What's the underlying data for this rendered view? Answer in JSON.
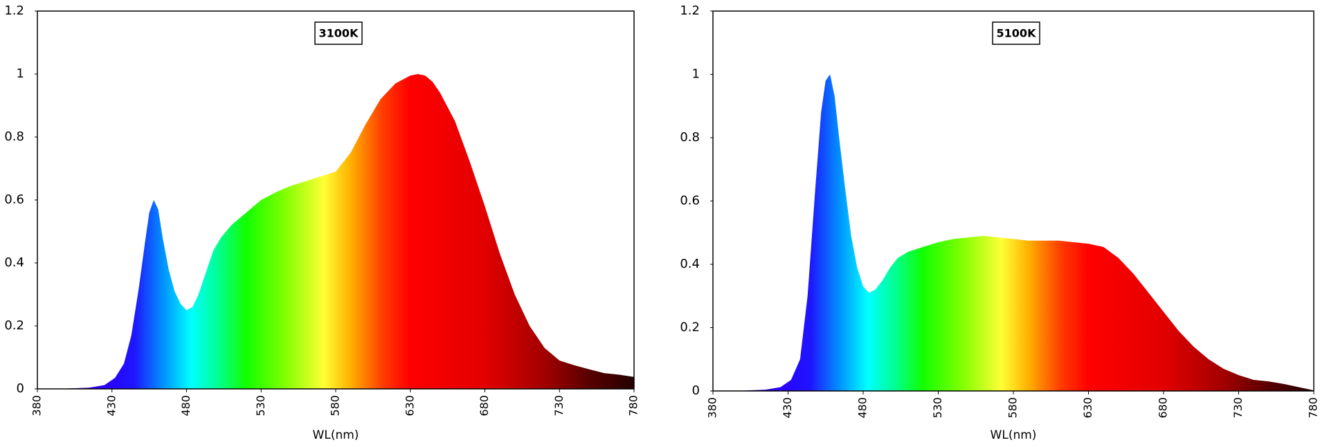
{
  "chart_data": [
    {
      "type": "area",
      "title": "3100K",
      "xlabel": "WL(nm)",
      "ylabel": "",
      "xlim": [
        380,
        780
      ],
      "ylim": [
        0,
        1.2
      ],
      "x_ticks": [
        "380",
        "430",
        "480",
        "530",
        "580",
        "630",
        "680",
        "730",
        "780"
      ],
      "y_ticks": [
        "0",
        "0.2",
        "0.4",
        "0.6",
        "0.8",
        "1",
        "1.2"
      ],
      "grid": false,
      "fill": "wavelength-spectrum-gradient",
      "x": [
        380,
        400,
        415,
        425,
        432,
        438,
        443,
        448,
        452,
        455,
        458,
        461,
        464,
        468,
        472,
        476,
        480,
        484,
        488,
        493,
        498,
        503,
        510,
        520,
        530,
        540,
        550,
        560,
        570,
        580,
        590,
        600,
        610,
        620,
        630,
        635,
        640,
        645,
        650,
        660,
        670,
        680,
        690,
        700,
        710,
        720,
        730,
        740,
        750,
        760,
        770,
        780
      ],
      "y": [
        0,
        0.001,
        0.004,
        0.012,
        0.035,
        0.08,
        0.17,
        0.32,
        0.46,
        0.56,
        0.6,
        0.57,
        0.48,
        0.38,
        0.31,
        0.27,
        0.25,
        0.26,
        0.3,
        0.37,
        0.44,
        0.48,
        0.52,
        0.56,
        0.6,
        0.625,
        0.645,
        0.66,
        0.675,
        0.69,
        0.75,
        0.84,
        0.92,
        0.97,
        0.995,
        1.0,
        0.995,
        0.975,
        0.94,
        0.85,
        0.72,
        0.58,
        0.43,
        0.3,
        0.2,
        0.13,
        0.09,
        0.075,
        0.062,
        0.05,
        0.045,
        0.038
      ]
    },
    {
      "type": "area",
      "title": "5100K",
      "xlabel": "WL(nm)",
      "ylabel": "",
      "xlim": [
        380,
        780
      ],
      "ylim": [
        0,
        1.2
      ],
      "x_ticks": [
        "380",
        "430",
        "480",
        "530",
        "580",
        "630",
        "680",
        "730",
        "780"
      ],
      "y_ticks": [
        "0",
        "0.2",
        "0.4",
        "0.6",
        "0.8",
        "1",
        "1.2"
      ],
      "grid": false,
      "fill": "wavelength-spectrum-gradient",
      "x": [
        380,
        400,
        415,
        425,
        432,
        438,
        443,
        448,
        452,
        455,
        458,
        461,
        464,
        468,
        472,
        476,
        480,
        484,
        488,
        493,
        498,
        503,
        510,
        520,
        530,
        540,
        550,
        560,
        570,
        580,
        590,
        600,
        610,
        620,
        630,
        640,
        650,
        660,
        670,
        680,
        690,
        700,
        710,
        720,
        730,
        740,
        750,
        760,
        770,
        780
      ],
      "y": [
        0,
        0.001,
        0.004,
        0.012,
        0.035,
        0.1,
        0.3,
        0.63,
        0.88,
        0.98,
        1.0,
        0.93,
        0.8,
        0.64,
        0.49,
        0.39,
        0.33,
        0.31,
        0.32,
        0.35,
        0.39,
        0.42,
        0.44,
        0.455,
        0.47,
        0.48,
        0.485,
        0.49,
        0.485,
        0.48,
        0.475,
        0.475,
        0.475,
        0.47,
        0.465,
        0.455,
        0.42,
        0.37,
        0.31,
        0.25,
        0.19,
        0.14,
        0.1,
        0.07,
        0.05,
        0.035,
        0.03,
        0.022,
        0.012,
        0.002
      ]
    }
  ]
}
